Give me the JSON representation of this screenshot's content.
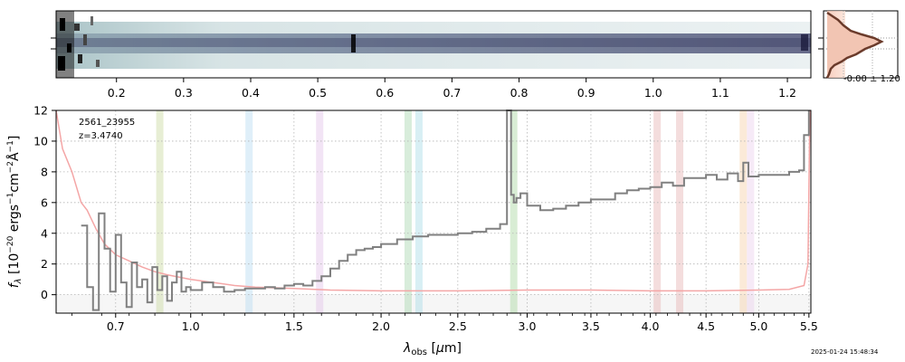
{
  "chart_data": {
    "type": "line",
    "object_id": "2561_23955",
    "redshift_label": "z=3.4740",
    "xlabel": "λ_obs [µm]",
    "ylabel": "f_λ [10^-20 ergs^-1 cm^-2 Å^-1]",
    "xlim": [
      0.5,
      5.52
    ],
    "ylim": [
      -1.2,
      12
    ],
    "x_scale": "sqrt",
    "grid": true,
    "xticks": [
      0.7,
      1.0,
      1.5,
      2.0,
      2.5,
      3.0,
      3.5,
      4.0,
      4.5,
      5.0,
      5.5
    ],
    "xtick_labels": [
      "0.7",
      "1.0",
      "1.5",
      "2.0",
      "2.5",
      "3.0",
      "3.5",
      "4.0",
      "4.5",
      "5.0",
      "5.5"
    ],
    "yticks": [
      0,
      2,
      4,
      6,
      8,
      10,
      12
    ],
    "ytick_labels": [
      "0",
      "2",
      "4",
      "6",
      "8",
      "10",
      "12"
    ],
    "top_axis_ticks": [
      0.2,
      0.3,
      0.4,
      0.5,
      0.6,
      0.7,
      0.8,
      0.9,
      1.0,
      1.1,
      1.2
    ],
    "top_axis_labels": [
      "0.2",
      "0.3",
      "0.4",
      "0.5",
      "0.6",
      "0.7",
      "0.8",
      "0.9",
      "1.0",
      "1.1",
      "1.2"
    ],
    "top_axis_range": [
      0.11,
      1.235
    ],
    "series": [
      {
        "color": "#808080",
        "style": "steps",
        "x": [
          0.58,
          0.6,
          0.62,
          0.64,
          0.66,
          0.68,
          0.7,
          0.72,
          0.74,
          0.76,
          0.78,
          0.8,
          0.82,
          0.84,
          0.86,
          0.88,
          0.9,
          0.92,
          0.94,
          0.96,
          0.98,
          1.0,
          1.05,
          1.1,
          1.15,
          1.2,
          1.25,
          1.3,
          1.35,
          1.4,
          1.45,
          1.5,
          1.55,
          1.6,
          1.65,
          1.7,
          1.75,
          1.8,
          1.85,
          1.9,
          1.95,
          2.0,
          2.1,
          2.2,
          2.3,
          2.4,
          2.5,
          2.6,
          2.7,
          2.8,
          2.85,
          2.88,
          2.9,
          2.92,
          2.95,
          3.0,
          3.1,
          3.2,
          3.3,
          3.4,
          3.5,
          3.6,
          3.7,
          3.8,
          3.9,
          4.0,
          4.1,
          4.2,
          4.3,
          4.4,
          4.5,
          4.6,
          4.7,
          4.8,
          4.85,
          4.9,
          5.0,
          5.1,
          5.2,
          5.3,
          5.4,
          5.45,
          5.5
        ],
        "y": [
          4.5,
          0.5,
          -1.0,
          5.3,
          3.0,
          0.2,
          3.9,
          0.8,
          -0.8,
          2.1,
          0.5,
          1.0,
          -0.5,
          1.8,
          0.3,
          1.2,
          -0.4,
          0.8,
          1.5,
          0.2,
          0.5,
          0.3,
          0.8,
          0.5,
          0.2,
          0.3,
          0.4,
          0.4,
          0.5,
          0.4,
          0.6,
          0.7,
          0.6,
          0.9,
          1.2,
          1.7,
          2.2,
          2.6,
          2.9,
          3.0,
          3.1,
          3.3,
          3.6,
          3.8,
          3.9,
          3.9,
          4.0,
          4.1,
          4.3,
          4.6,
          12.0,
          6.5,
          6.0,
          6.3,
          6.6,
          5.8,
          5.5,
          5.6,
          5.8,
          6.0,
          6.2,
          6.2,
          6.6,
          6.8,
          6.9,
          7.0,
          7.3,
          7.1,
          7.6,
          7.6,
          7.8,
          7.5,
          7.9,
          7.4,
          8.6,
          7.7,
          7.8,
          7.8,
          7.8,
          8.0,
          8.1,
          10.4,
          12.0
        ]
      },
      {
        "color": "#f4a6a6",
        "style": "line",
        "x": [
          0.5,
          0.52,
          0.55,
          0.58,
          0.6,
          0.63,
          0.66,
          0.7,
          0.75,
          0.8,
          0.85,
          0.9,
          1.0,
          1.1,
          1.2,
          1.3,
          1.5,
          1.7,
          2.0,
          2.5,
          3.0,
          3.5,
          4.0,
          4.5,
          5.0,
          5.3,
          5.45,
          5.49,
          5.51
        ],
        "y": [
          12.0,
          9.5,
          8.0,
          6.0,
          5.5,
          4.3,
          3.3,
          2.6,
          2.2,
          1.8,
          1.5,
          1.3,
          1.0,
          0.8,
          0.6,
          0.5,
          0.4,
          0.3,
          0.25,
          0.25,
          0.3,
          0.3,
          0.25,
          0.25,
          0.3,
          0.35,
          0.6,
          2.0,
          12.0
        ]
      }
    ],
    "emission_bands": [
      {
        "x": 0.87,
        "color": "#c9d9a0"
      },
      {
        "x": 1.27,
        "color": "#b9dcf2"
      },
      {
        "x": 1.64,
        "color": "#e2c4e8"
      },
      {
        "x": 2.17,
        "color": "#a9d6b0"
      },
      {
        "x": 2.24,
        "color": "#a9dce6"
      },
      {
        "x": 2.9,
        "color": "#a9d6a0"
      },
      {
        "x": 4.06,
        "color": "#e6b4b4"
      },
      {
        "x": 4.26,
        "color": "#e6b4b4"
      },
      {
        "x": 4.85,
        "color": "#f7d0a8"
      },
      {
        "x": 4.92,
        "color": "#ead0ee"
      }
    ],
    "side_panel_label": "-0.00 ± 1.20",
    "timestamp": "2025-01-24 15:48:34"
  }
}
